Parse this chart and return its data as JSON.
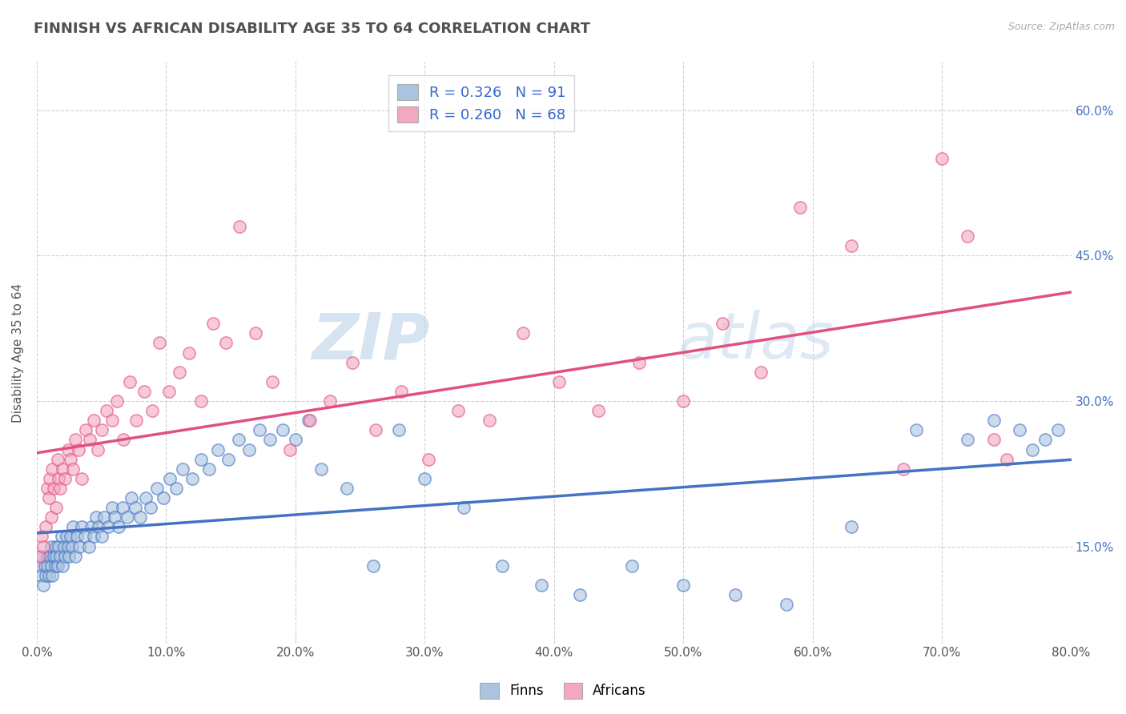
{
  "title": "FINNISH VS AFRICAN DISABILITY AGE 35 TO 64 CORRELATION CHART",
  "source_text": "Source: ZipAtlas.com",
  "ylabel": "Disability Age 35 to 64",
  "xlim": [
    0.0,
    0.8
  ],
  "ylim": [
    0.05,
    0.65
  ],
  "yticks": [
    0.15,
    0.3,
    0.45,
    0.6
  ],
  "xticks": [
    0.0,
    0.1,
    0.2,
    0.3,
    0.4,
    0.5,
    0.6,
    0.7,
    0.8
  ],
  "finn_color": "#aac4e0",
  "african_color": "#f4a8c0",
  "finn_line_color": "#4472c4",
  "african_line_color": "#e05080",
  "finn_R": 0.326,
  "finn_N": 91,
  "african_R": 0.26,
  "african_N": 68,
  "legend_label_finn": "Finns",
  "legend_label_african": "Africans",
  "background_color": "#ffffff",
  "grid_color": "#cccccc",
  "title_color": "#505050",
  "finn_x": [
    0.002,
    0.003,
    0.004,
    0.005,
    0.006,
    0.007,
    0.008,
    0.008,
    0.009,
    0.01,
    0.011,
    0.011,
    0.012,
    0.013,
    0.014,
    0.015,
    0.015,
    0.016,
    0.017,
    0.018,
    0.019,
    0.02,
    0.021,
    0.022,
    0.023,
    0.024,
    0.025,
    0.026,
    0.027,
    0.028,
    0.03,
    0.031,
    0.033,
    0.035,
    0.037,
    0.04,
    0.042,
    0.044,
    0.046,
    0.048,
    0.05,
    0.052,
    0.055,
    0.058,
    0.06,
    0.063,
    0.066,
    0.07,
    0.073,
    0.076,
    0.08,
    0.084,
    0.088,
    0.093,
    0.098,
    0.103,
    0.108,
    0.113,
    0.12,
    0.127,
    0.133,
    0.14,
    0.148,
    0.156,
    0.164,
    0.172,
    0.18,
    0.19,
    0.2,
    0.21,
    0.22,
    0.24,
    0.26,
    0.28,
    0.3,
    0.33,
    0.36,
    0.39,
    0.42,
    0.46,
    0.5,
    0.54,
    0.58,
    0.63,
    0.68,
    0.72,
    0.74,
    0.76,
    0.77,
    0.78,
    0.79
  ],
  "finn_y": [
    0.13,
    0.12,
    0.14,
    0.11,
    0.13,
    0.12,
    0.14,
    0.13,
    0.12,
    0.14,
    0.13,
    0.15,
    0.12,
    0.14,
    0.13,
    0.15,
    0.14,
    0.13,
    0.15,
    0.14,
    0.16,
    0.13,
    0.15,
    0.14,
    0.16,
    0.15,
    0.14,
    0.16,
    0.15,
    0.17,
    0.14,
    0.16,
    0.15,
    0.17,
    0.16,
    0.15,
    0.17,
    0.16,
    0.18,
    0.17,
    0.16,
    0.18,
    0.17,
    0.19,
    0.18,
    0.17,
    0.19,
    0.18,
    0.2,
    0.19,
    0.18,
    0.2,
    0.19,
    0.21,
    0.2,
    0.22,
    0.21,
    0.23,
    0.22,
    0.24,
    0.23,
    0.25,
    0.24,
    0.26,
    0.25,
    0.27,
    0.26,
    0.27,
    0.26,
    0.28,
    0.23,
    0.21,
    0.13,
    0.27,
    0.22,
    0.19,
    0.13,
    0.11,
    0.1,
    0.13,
    0.11,
    0.1,
    0.09,
    0.17,
    0.27,
    0.26,
    0.28,
    0.27,
    0.25,
    0.26,
    0.27
  ],
  "african_x": [
    0.002,
    0.004,
    0.005,
    0.007,
    0.008,
    0.009,
    0.01,
    0.011,
    0.012,
    0.013,
    0.015,
    0.016,
    0.017,
    0.018,
    0.02,
    0.022,
    0.024,
    0.026,
    0.028,
    0.03,
    0.032,
    0.035,
    0.038,
    0.041,
    0.044,
    0.047,
    0.05,
    0.054,
    0.058,
    0.062,
    0.067,
    0.072,
    0.077,
    0.083,
    0.089,
    0.095,
    0.102,
    0.11,
    0.118,
    0.127,
    0.136,
    0.146,
    0.157,
    0.169,
    0.182,
    0.196,
    0.211,
    0.227,
    0.244,
    0.262,
    0.282,
    0.303,
    0.326,
    0.35,
    0.376,
    0.404,
    0.434,
    0.466,
    0.5,
    0.53,
    0.56,
    0.59,
    0.63,
    0.67,
    0.7,
    0.72,
    0.74,
    0.75
  ],
  "african_y": [
    0.14,
    0.16,
    0.15,
    0.17,
    0.21,
    0.2,
    0.22,
    0.18,
    0.23,
    0.21,
    0.19,
    0.24,
    0.22,
    0.21,
    0.23,
    0.22,
    0.25,
    0.24,
    0.23,
    0.26,
    0.25,
    0.22,
    0.27,
    0.26,
    0.28,
    0.25,
    0.27,
    0.29,
    0.28,
    0.3,
    0.26,
    0.32,
    0.28,
    0.31,
    0.29,
    0.36,
    0.31,
    0.33,
    0.35,
    0.3,
    0.38,
    0.36,
    0.48,
    0.37,
    0.32,
    0.25,
    0.28,
    0.3,
    0.34,
    0.27,
    0.31,
    0.24,
    0.29,
    0.28,
    0.37,
    0.32,
    0.29,
    0.34,
    0.3,
    0.38,
    0.33,
    0.5,
    0.46,
    0.23,
    0.55,
    0.47,
    0.26,
    0.24
  ]
}
